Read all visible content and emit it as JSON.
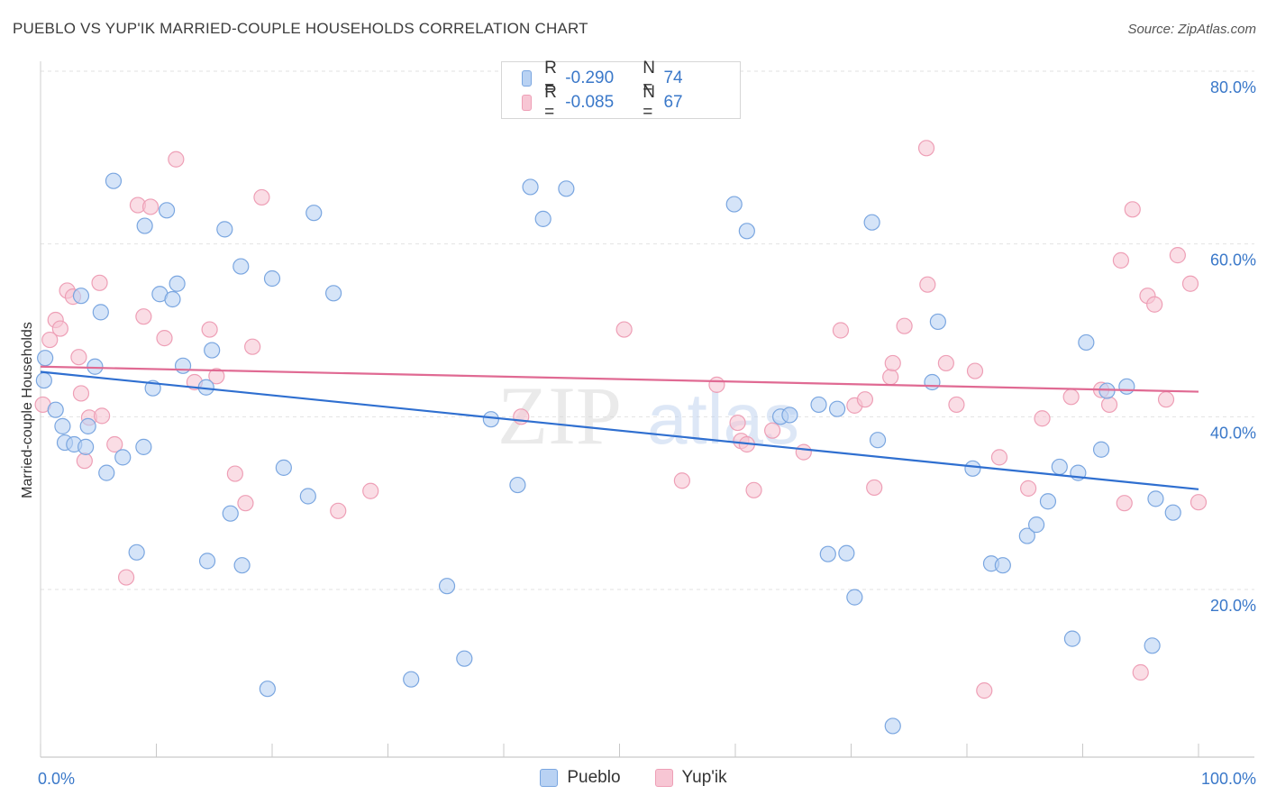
{
  "header": {
    "title": "PUEBLO VS YUP'IK MARRIED-COUPLE HOUSEHOLDS CORRELATION CHART",
    "source": "Source: ZipAtlas.com"
  },
  "legend": {
    "r_label": "R =",
    "n_label": "N =",
    "series": [
      {
        "name": "Pueblo",
        "r": "-0.290",
        "n": "74"
      },
      {
        "name": "Yup'ik",
        "r": "-0.085",
        "n": "67"
      }
    ]
  },
  "watermark": {
    "zip": "ZIP",
    "atlas": "atlas"
  },
  "colors": {
    "pueblo_fill": "#b9d2f3",
    "pueblo_stroke": "#7aa6e0",
    "pueblo_line": "#2f6fd0",
    "yupik_fill": "#f7c6d4",
    "yupik_stroke": "#ee9fb6",
    "yupik_line": "#e06a93",
    "tick_text": "#3a78c9"
  },
  "chart_data": {
    "type": "scatter",
    "title": "PUEBLO VS YUP'IK MARRIED-COUPLE HOUSEHOLDS CORRELATION CHART",
    "xlabel": "",
    "ylabel": "Married-couple Households",
    "xlim": [
      0,
      100
    ],
    "ylim": [
      0,
      82
    ],
    "x_tick_labels": [
      "0.0%",
      "100.0%"
    ],
    "y_ticks": [
      20,
      40,
      60,
      80
    ],
    "y_tick_labels": [
      "20.0%",
      "40.0%",
      "60.0%",
      "80.0%"
    ],
    "grid": true,
    "legend_position": "top-center",
    "series": [
      {
        "name": "Pueblo",
        "color": "#7aa6e0",
        "trend": {
          "x": [
            0,
            100
          ],
          "y": [
            45.2,
            31.6
          ]
        },
        "points": [
          [
            0.3,
            44.2
          ],
          [
            0.4,
            46.8
          ],
          [
            1.3,
            40.8
          ],
          [
            1.9,
            38.9
          ],
          [
            2.1,
            37.0
          ],
          [
            2.9,
            36.8
          ],
          [
            3.5,
            54.0
          ],
          [
            3.9,
            36.5
          ],
          [
            4.1,
            38.9
          ],
          [
            4.7,
            45.8
          ],
          [
            5.2,
            52.1
          ],
          [
            5.7,
            33.5
          ],
          [
            6.3,
            67.3
          ],
          [
            7.1,
            35.3
          ],
          [
            8.3,
            24.3
          ],
          [
            8.9,
            36.5
          ],
          [
            9.0,
            62.1
          ],
          [
            9.7,
            43.3
          ],
          [
            10.3,
            54.2
          ],
          [
            10.9,
            63.9
          ],
          [
            11.4,
            53.6
          ],
          [
            11.8,
            55.4
          ],
          [
            12.3,
            45.9
          ],
          [
            14.3,
            43.4
          ],
          [
            14.4,
            23.3
          ],
          [
            14.8,
            47.7
          ],
          [
            15.9,
            61.7
          ],
          [
            16.4,
            28.8
          ],
          [
            17.3,
            57.4
          ],
          [
            17.4,
            22.8
          ],
          [
            19.6,
            8.5
          ],
          [
            20.0,
            56.0
          ],
          [
            21.0,
            34.1
          ],
          [
            23.1,
            30.8
          ],
          [
            23.6,
            63.6
          ],
          [
            25.3,
            54.3
          ],
          [
            35.1,
            20.4
          ],
          [
            32.0,
            9.6
          ],
          [
            36.6,
            12.0
          ],
          [
            38.9,
            39.7
          ],
          [
            41.2,
            32.1
          ],
          [
            42.3,
            66.6
          ],
          [
            43.4,
            62.9
          ],
          [
            45.4,
            66.4
          ],
          [
            59.9,
            64.6
          ],
          [
            61.0,
            61.5
          ],
          [
            63.9,
            40.0
          ],
          [
            64.7,
            40.2
          ],
          [
            67.2,
            41.4
          ],
          [
            68.0,
            24.1
          ],
          [
            68.8,
            40.9
          ],
          [
            69.6,
            24.2
          ],
          [
            70.3,
            19.1
          ],
          [
            71.8,
            62.5
          ],
          [
            72.3,
            37.3
          ],
          [
            73.6,
            4.2
          ],
          [
            77.0,
            44.0
          ],
          [
            77.5,
            51.0
          ],
          [
            80.5,
            34.0
          ],
          [
            82.1,
            23.0
          ],
          [
            83.1,
            22.8
          ],
          [
            85.2,
            26.2
          ],
          [
            86.0,
            27.5
          ],
          [
            87.0,
            30.2
          ],
          [
            88.0,
            34.2
          ],
          [
            89.1,
            14.3
          ],
          [
            89.6,
            33.5
          ],
          [
            90.3,
            48.6
          ],
          [
            91.6,
            36.2
          ],
          [
            92.1,
            43.0
          ],
          [
            93.8,
            43.5
          ],
          [
            96.0,
            13.5
          ],
          [
            96.3,
            30.5
          ],
          [
            97.8,
            28.9
          ]
        ]
      },
      {
        "name": "Yup'ik",
        "color": "#ee9fb6",
        "trend": {
          "x": [
            0,
            100
          ],
          "y": [
            45.8,
            42.9
          ]
        },
        "points": [
          [
            0.2,
            41.4
          ],
          [
            0.8,
            48.9
          ],
          [
            1.3,
            51.2
          ],
          [
            1.7,
            50.2
          ],
          [
            2.3,
            54.6
          ],
          [
            2.8,
            53.9
          ],
          [
            3.3,
            46.9
          ],
          [
            3.5,
            42.7
          ],
          [
            3.8,
            34.9
          ],
          [
            4.2,
            39.9
          ],
          [
            5.1,
            55.5
          ],
          [
            5.3,
            40.1
          ],
          [
            6.4,
            36.8
          ],
          [
            7.4,
            21.4
          ],
          [
            8.4,
            64.5
          ],
          [
            8.9,
            51.6
          ],
          [
            9.5,
            64.3
          ],
          [
            10.7,
            49.1
          ],
          [
            11.7,
            69.8
          ],
          [
            13.3,
            44.0
          ],
          [
            14.6,
            50.1
          ],
          [
            15.2,
            44.7
          ],
          [
            16.8,
            33.4
          ],
          [
            17.7,
            30.0
          ],
          [
            18.3,
            48.1
          ],
          [
            19.1,
            65.4
          ],
          [
            25.7,
            29.1
          ],
          [
            28.5,
            31.4
          ],
          [
            41.5,
            40.0
          ],
          [
            50.4,
            50.1
          ],
          [
            55.4,
            32.6
          ],
          [
            58.4,
            43.7
          ],
          [
            60.2,
            39.3
          ],
          [
            60.5,
            37.2
          ],
          [
            61.0,
            36.8
          ],
          [
            61.6,
            31.5
          ],
          [
            63.2,
            38.4
          ],
          [
            65.9,
            35.9
          ],
          [
            69.1,
            50.0
          ],
          [
            70.3,
            41.3
          ],
          [
            71.2,
            42.0
          ],
          [
            72.0,
            31.8
          ],
          [
            73.4,
            44.6
          ],
          [
            73.6,
            46.2
          ],
          [
            74.6,
            50.5
          ],
          [
            76.5,
            71.1
          ],
          [
            76.6,
            55.3
          ],
          [
            78.2,
            46.2
          ],
          [
            79.1,
            41.4
          ],
          [
            80.7,
            45.3
          ],
          [
            81.5,
            8.3
          ],
          [
            82.8,
            35.3
          ],
          [
            85.3,
            31.7
          ],
          [
            86.5,
            39.8
          ],
          [
            89.0,
            42.3
          ],
          [
            91.6,
            43.1
          ],
          [
            92.3,
            41.4
          ],
          [
            93.3,
            58.1
          ],
          [
            93.6,
            30.0
          ],
          [
            94.3,
            64.0
          ],
          [
            95.0,
            10.4
          ],
          [
            95.6,
            54.0
          ],
          [
            96.2,
            53.0
          ],
          [
            97.2,
            42.0
          ],
          [
            98.2,
            58.7
          ],
          [
            99.3,
            55.4
          ],
          [
            100.0,
            30.1
          ]
        ]
      }
    ]
  }
}
